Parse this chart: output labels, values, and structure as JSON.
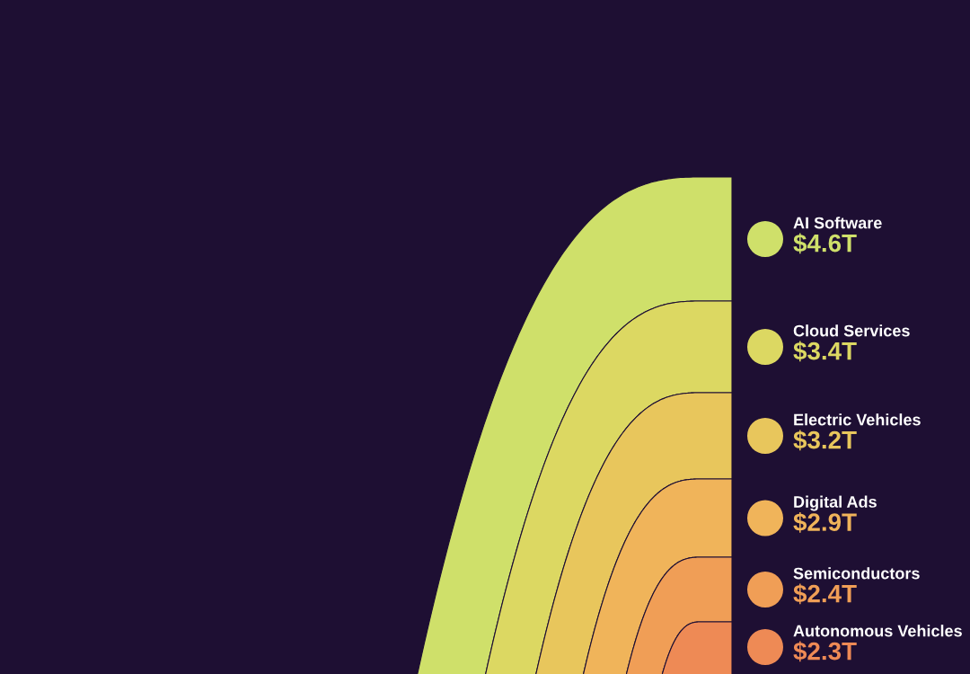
{
  "chart_data": {
    "type": "other",
    "categories": [
      "AI Software",
      "Cloud Services",
      "Electric Vehicles",
      "Digital Ads",
      "Semiconductors",
      "Autonomous Vehicles"
    ],
    "values": [
      4.6,
      3.4,
      3.2,
      2.9,
      2.4,
      2.3
    ],
    "value_labels": [
      "$4.6T",
      "$3.4T",
      "$3.2T",
      "$2.9T",
      "$2.4T",
      "$2.3T"
    ],
    "colors": [
      "#cfe06a",
      "#dcd862",
      "#e8c65c",
      "#f0b45a",
      "#f09e56",
      "#ee8a55"
    ]
  }
}
